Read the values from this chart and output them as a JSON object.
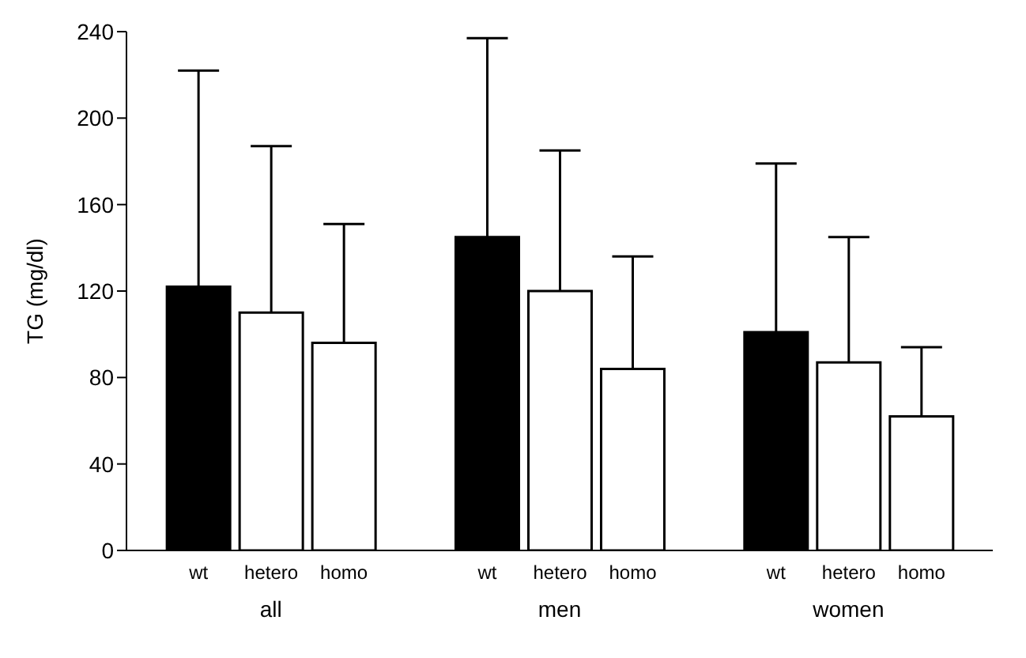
{
  "chart_data": {
    "type": "bar",
    "ylabel": "TG (mg/dl)",
    "categories": [
      "all",
      "men",
      "women"
    ],
    "series": [
      {
        "name": "wt",
        "color": "#000000",
        "values": [
          122,
          145,
          101
        ],
        "errors": [
          [
            122,
            222
          ],
          [
            145,
            237
          ],
          [
            101,
            179
          ]
        ]
      },
      {
        "name": "hetero",
        "color": "#ffffff",
        "values": [
          110,
          120,
          87
        ],
        "errors": [
          [
            110,
            187
          ],
          [
            120,
            185
          ],
          [
            87,
            145
          ]
        ]
      },
      {
        "name": "homo",
        "color": "#ffffff",
        "values": [
          96,
          84,
          62
        ],
        "errors": [
          [
            96,
            151
          ],
          [
            84,
            136
          ],
          [
            62,
            94
          ]
        ]
      }
    ],
    "ylim": [
      0,
      240
    ],
    "yticks": [
      0,
      40,
      80,
      120,
      160,
      200,
      240
    ],
    "grid": false,
    "legend": false
  }
}
